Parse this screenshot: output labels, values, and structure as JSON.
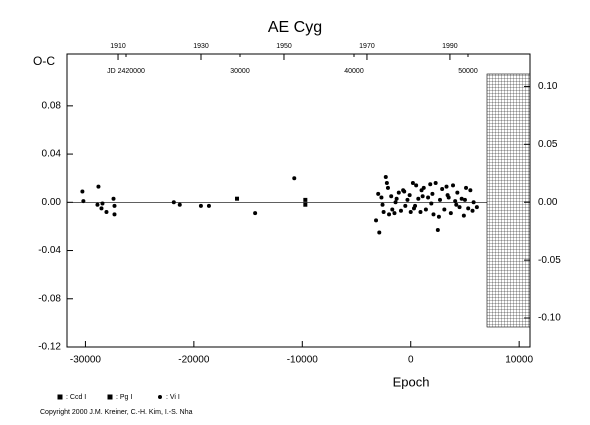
{
  "chart_data": {
    "type": "scatter",
    "title": "AE Cyg",
    "y_label": "O-C",
    "x_label": "Epoch",
    "xlim": [
      -31700,
      11000
    ],
    "xticks": [
      -30000,
      -20000,
      -10000,
      0,
      10000
    ],
    "ylim": [
      -0.12,
      0.123
    ],
    "yticks": [
      {
        "value": -0.12,
        "label": "-0.12"
      },
      -0.08,
      -0.04,
      {
        "value": 0,
        "label": "0.00"
      },
      0.04,
      0.08
    ],
    "y2lim": [
      -0.125,
      0.128
    ],
    "y2ticks": [
      {
        "value": -0.1,
        "label": "-0.10"
      },
      -0.05,
      {
        "value": 0,
        "label": "0.00"
      },
      0.05,
      {
        "value": 0.1,
        "label": "0.10"
      }
    ],
    "top_year_lim": [
      1897.7,
      2009.3
    ],
    "top_year_ticks": [
      1910,
      1930,
      1950,
      1970,
      1990
    ],
    "top_jd_lim": [
      2414825,
      2455440
    ],
    "top_jd_ticks": [
      {
        "value": 2420000,
        "label": "JD 2420000"
      },
      {
        "value": 2430000,
        "label": "30000"
      },
      {
        "value": 2440000,
        "label": "40000"
      },
      {
        "value": 2450000,
        "label": "50000"
      }
    ],
    "zero_line": true,
    "series": [
      {
        "name": ": Ccd I",
        "marker": "square",
        "color": "#000000",
        "x": [],
        "values": []
      },
      {
        "name": ": Pg I",
        "marker": "square",
        "color": "#000000",
        "x": [
          -16020,
          -9720,
          -9720
        ],
        "values": [
          0.003,
          -0.002,
          0.002
        ]
      },
      {
        "name": ": Vi I",
        "marker": "circle",
        "color": "#000000",
        "x": [
          -30280,
          -30190,
          -28800,
          -28890,
          -28520,
          -28430,
          -28060,
          -27410,
          -27320,
          -27320,
          -21850,
          -21300,
          -19350,
          -18610,
          -14350,
          -10740,
          -3200,
          -3000,
          -2900,
          -2700,
          -2500,
          -2300,
          -2200,
          -2000,
          -1800,
          -1700,
          -1500,
          -1300,
          -1100,
          -900,
          -700,
          -500,
          -300,
          -100,
          0,
          200,
          300,
          500,
          700,
          900,
          1000,
          1200,
          1400,
          1600,
          1800,
          2000,
          2100,
          2300,
          2500,
          2700,
          2900,
          3100,
          3300,
          3500,
          3700,
          3900,
          4100,
          4300,
          4500,
          4700,
          4900,
          5100,
          5300,
          5500,
          5700,
          6100,
          -2600,
          -2100,
          -1400,
          -600,
          400,
          1100,
          1900,
          2600,
          3400,
          4200,
          5000,
          5800
        ],
        "values": [
          0.009,
          0.001,
          0.013,
          -0.002,
          -0.005,
          -0.001,
          -0.008,
          0.003,
          -0.003,
          -0.01,
          0.0,
          -0.002,
          -0.003,
          -0.003,
          -0.009,
          0.02,
          -0.015,
          0.007,
          -0.025,
          0.004,
          -0.008,
          0.021,
          0.016,
          -0.01,
          0.005,
          -0.006,
          -0.009,
          0.003,
          0.008,
          -0.007,
          0.01,
          -0.003,
          0.002,
          0.006,
          -0.008,
          0.016,
          -0.005,
          0.014,
          0.003,
          -0.008,
          0.01,
          0.012,
          -0.006,
          0.004,
          0.015,
          0.007,
          -0.01,
          0.016,
          -0.023,
          0.002,
          0.011,
          -0.006,
          0.013,
          0.004,
          -0.009,
          0.014,
          0.001,
          0.008,
          -0.004,
          0.003,
          -0.011,
          0.012,
          -0.005,
          0.01,
          -0.007,
          -0.004,
          -0.002,
          0.012,
          0.0,
          0.009,
          -0.003,
          0.005,
          -0.001,
          -0.012,
          0.006,
          -0.002,
          0.002,
          0.0
        ]
      }
    ],
    "copyright": "Copyright 2000 J.M. Kreiner, C.-H. Kim, I.-S. Nha"
  }
}
